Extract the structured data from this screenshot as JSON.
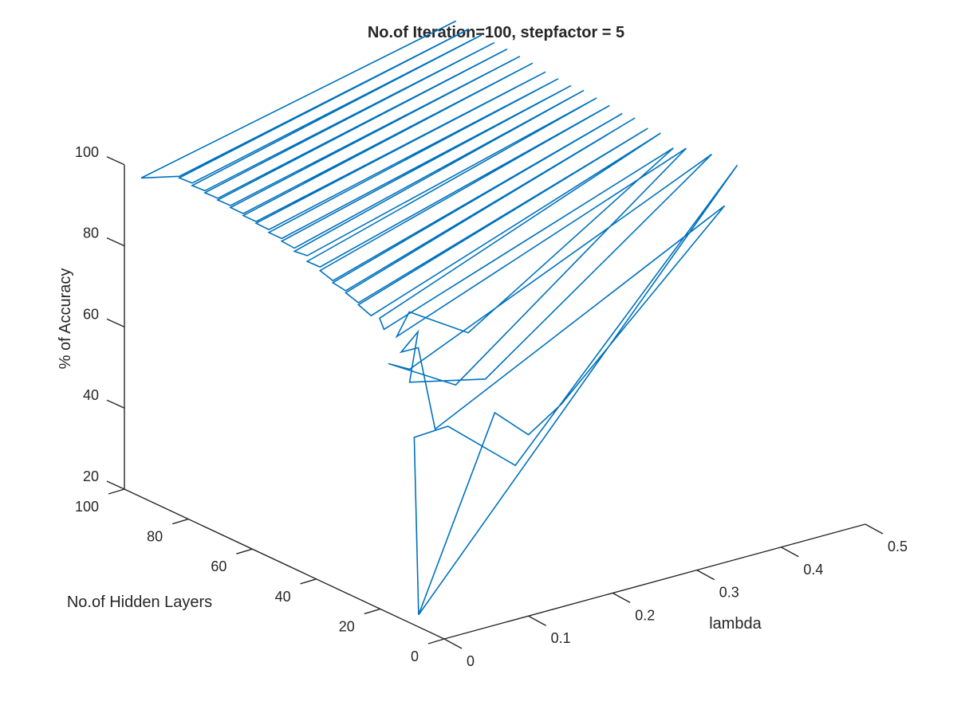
{
  "chart_data": {
    "type": "line",
    "projection": "3d",
    "title": "No.of Iteration=100, stepfactor = 5",
    "xlabel": "lambda",
    "ylabel": "No.of Hidden Layers",
    "zlabel": "% of Accuracy",
    "xlim": [
      0,
      0.5
    ],
    "ylim": [
      0,
      100
    ],
    "zlim": [
      20,
      100
    ],
    "xticks": [
      "0",
      "0.1",
      "0.2",
      "0.3",
      "0.4",
      "0.5"
    ],
    "yticks": [
      "0",
      "20",
      "40",
      "60",
      "80",
      "100"
    ],
    "zticks": [
      "20",
      "40",
      "60",
      "80",
      "100"
    ],
    "grid": false,
    "line_color": "#0072bd",
    "series": [
      {
        "points": [
          [
            0.0,
            8,
            23.0
          ],
          [
            0.01,
            12,
            64.7
          ],
          [
            0.05,
            12,
            65.2
          ],
          [
            0.13,
            12,
            51.0
          ],
          [
            0.5,
            40,
            93.8
          ],
          [
            0.0,
            8,
            23.0
          ],
          [
            0.06,
            0,
            72.4
          ],
          [
            0.1,
            0,
            64.7
          ],
          [
            0.2,
            16,
            60.7
          ],
          [
            0.5,
            44,
            82.3
          ],
          [
            0.05,
            16,
            63.0
          ],
          [
            0.03,
            16,
            84.2
          ],
          [
            0.04,
            24,
            79.6
          ],
          [
            0.06,
            24,
            83.5
          ],
          [
            0.05,
            24,
            71.6
          ],
          [
            0.14,
            24,
            67.3
          ],
          [
            0.5,
            48,
            93.5
          ],
          [
            0.05,
            24,
            74.8
          ],
          [
            0.04,
            28,
            75.3
          ],
          [
            0.12,
            28,
            65.5
          ],
          [
            0.5,
            56,
            92.0
          ],
          [
            0.05,
            28,
            81.4
          ],
          [
            0.08,
            32,
            84.3
          ],
          [
            0.15,
            32,
            75.2
          ],
          [
            0.5,
            60,
            90.6
          ],
          [
            0.05,
            32,
            81.7
          ],
          [
            0.06,
            36,
            82.4
          ],
          [
            0.5,
            64,
            92.8
          ],
          [
            0.05,
            36,
            83.6
          ],
          [
            0.05,
            40,
            84.8
          ],
          [
            0.5,
            68,
            92.5
          ],
          [
            0.05,
            40,
            85.3
          ],
          [
            0.05,
            44,
            86.3
          ],
          [
            0.5,
            72,
            93.6
          ],
          [
            0.05,
            44,
            86.8
          ],
          [
            0.05,
            48,
            87.3
          ],
          [
            0.5,
            76,
            93.2
          ],
          [
            0.05,
            48,
            87.8
          ],
          [
            0.05,
            52,
            88.8
          ],
          [
            0.5,
            80,
            93.7
          ],
          [
            0.05,
            52,
            89.7
          ],
          [
            0.05,
            56,
            89.6
          ],
          [
            0.5,
            84,
            94.1
          ],
          [
            0.05,
            56,
            91.0
          ],
          [
            0.05,
            60,
            90.6
          ],
          [
            0.5,
            88,
            94.5
          ],
          [
            0.05,
            60,
            91.4
          ],
          [
            0.05,
            64,
            91.6
          ],
          [
            0.5,
            92,
            94.2
          ],
          [
            0.05,
            64,
            92.3
          ],
          [
            0.05,
            68,
            92.3
          ],
          [
            0.5,
            96,
            94.4
          ],
          [
            0.05,
            68,
            93.0
          ],
          [
            0.05,
            72,
            93.1
          ],
          [
            0.5,
            100,
            94.6
          ],
          [
            0.05,
            72,
            93.5
          ],
          [
            0.05,
            76,
            93.5
          ],
          [
            0.5,
            104,
            95.3
          ],
          [
            0.05,
            76,
            94.0
          ],
          [
            0.05,
            80,
            94.0
          ],
          [
            0.5,
            108,
            95.5
          ],
          [
            0.05,
            80,
            94.5
          ],
          [
            0.05,
            84,
            94.4
          ],
          [
            0.5,
            112,
            95.8
          ],
          [
            0.05,
            84,
            94.8
          ],
          [
            0.05,
            88,
            94.7
          ],
          [
            0.5,
            116,
            95.9
          ],
          [
            0.05,
            88,
            95.2
          ],
          [
            0.05,
            92,
            95.0
          ],
          [
            0.5,
            120,
            96.3
          ],
          [
            0.05,
            92,
            95.6
          ],
          [
            0.05,
            96,
            95.4
          ],
          [
            0.5,
            124,
            96.3
          ],
          [
            0.05,
            96,
            95.8
          ],
          [
            0.02,
            100,
            95.6
          ],
          [
            0.5,
            128,
            96.8
          ]
        ]
      }
    ]
  }
}
